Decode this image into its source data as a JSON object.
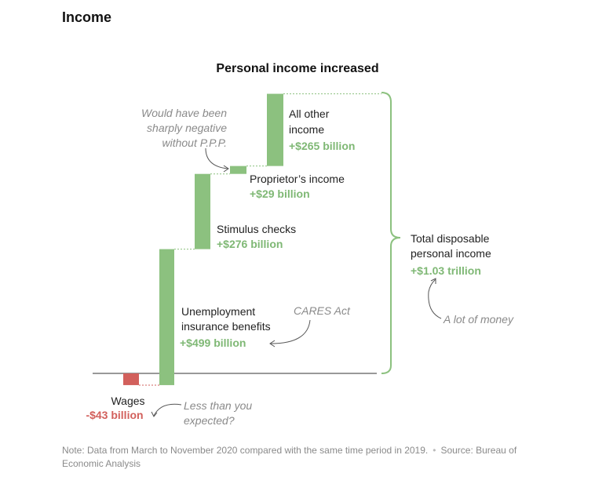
{
  "section": {
    "title": "Income"
  },
  "chart_data": {
    "type": "waterfall",
    "title": "Personal income increased",
    "unit": "billion",
    "steps": [
      {
        "label": "Wages",
        "value": -43,
        "value_text": "-$43 billion",
        "color": "#d2605c"
      },
      {
        "label": "Unemployment insurance benefits",
        "label_lines": [
          "Unemployment",
          "insurance benefits"
        ],
        "value": 499,
        "value_text": "+$499 billion",
        "color": "#8cc17f"
      },
      {
        "label": "Stimulus checks",
        "label_lines": [
          "Stimulus checks"
        ],
        "value": 276,
        "value_text": "+$276 billion",
        "color": "#8cc17f"
      },
      {
        "label": "Proprietor’s income",
        "label_lines": [
          "Proprietor’s income"
        ],
        "value": 29,
        "value_text": "+$29 billion",
        "color": "#8cc17f"
      },
      {
        "label": "All other income",
        "label_lines": [
          "All other",
          "income"
        ],
        "value": 265,
        "value_text": "+$265 billion",
        "color": "#8cc17f"
      }
    ],
    "total": {
      "label_lines": [
        "Total disposable",
        "personal income"
      ],
      "value_text": "+$1.03 trillion"
    },
    "annotations": {
      "ppp": [
        "Would have been",
        "sharply negative",
        "without P.P.P."
      ],
      "cares": "CARES Act",
      "lot": "A lot of money",
      "less": [
        "Less than you",
        "expected?"
      ]
    }
  },
  "footer": {
    "note": "Note: Data from March to November 2020 compared with the same time period in 2019.",
    "source": "Source: Bureau of Economic Analysis"
  },
  "colors": {
    "positive": "#8cc17f",
    "negative": "#d2605c",
    "bracket": "#8cc17f",
    "connector": "#8cc17f"
  }
}
